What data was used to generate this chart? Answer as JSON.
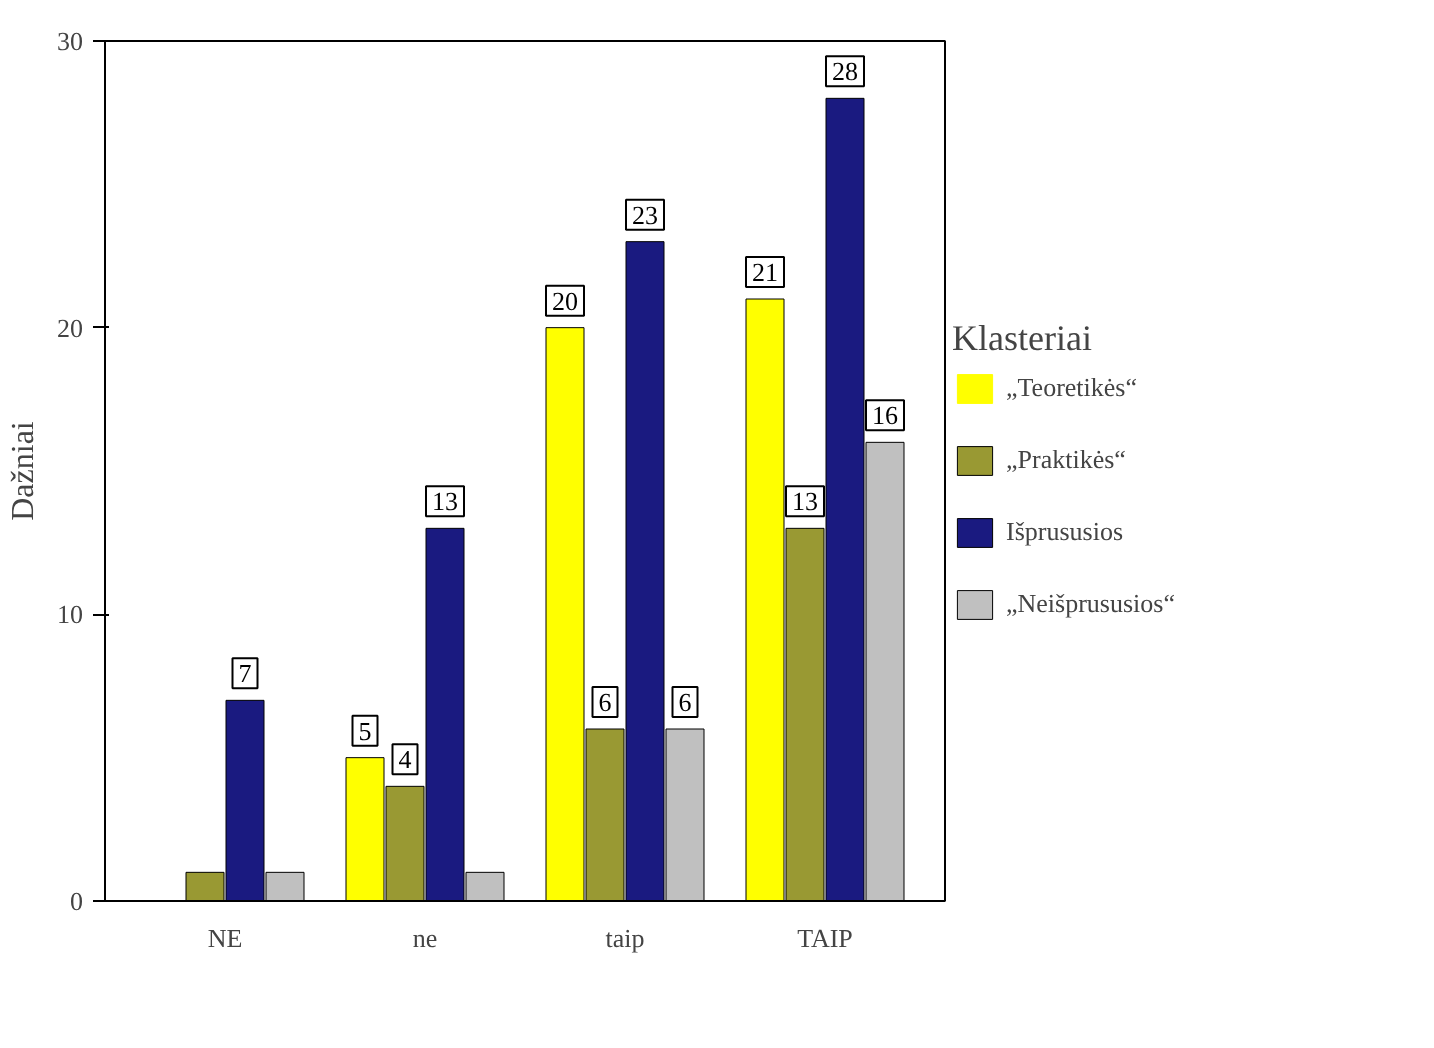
{
  "chart_data": {
    "type": "bar",
    "ylabel": "Dažniai",
    "legend_title": "Klasteriai",
    "categories": [
      "NE",
      "ne",
      "taip",
      "TAIP"
    ],
    "series": [
      {
        "name": "„Teoretikės“",
        "color": "#ffff00",
        "values": [
          0,
          5,
          20,
          21
        ],
        "value_labels": [
          null,
          "5",
          "20",
          "21"
        ]
      },
      {
        "name": "„Praktikės“",
        "color": "#999933",
        "values": [
          1,
          4,
          6,
          13
        ],
        "value_labels": [
          null,
          "4",
          "6",
          "13"
        ]
      },
      {
        "name": "Išprususios",
        "color": "#1a1a80",
        "values": [
          7,
          13,
          23,
          28
        ],
        "value_labels": [
          "7",
          "13",
          "23",
          "28"
        ]
      },
      {
        "name": "„Neišprususios“",
        "color": "#c0c0c0",
        "values": [
          1,
          1,
          6,
          16
        ],
        "value_labels": [
          null,
          null,
          "6",
          "16"
        ]
      }
    ],
    "ylim": [
      0,
      30
    ],
    "yticks": [
      0,
      10,
      20,
      30
    ],
    "grid": false,
    "legend": "right"
  }
}
